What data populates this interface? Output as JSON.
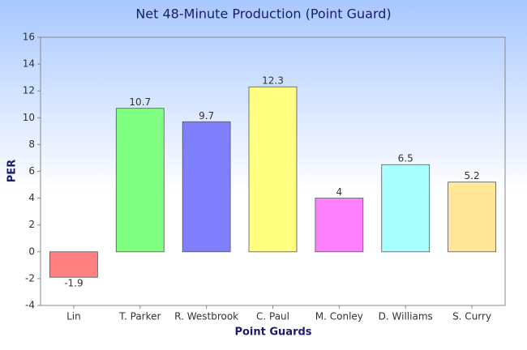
{
  "chart_data": {
    "type": "bar",
    "title": "Net 48-Minute Production (Point Guard)",
    "x_label": "Point Guards",
    "y_label": "PER",
    "categories": [
      "Lin",
      "T. Parker",
      "R. Westbrook",
      "C. Paul",
      "M. Conley",
      "D. Williams",
      "S. Curry"
    ],
    "values": [
      -1.9,
      10.7,
      9.7,
      12.3,
      4,
      6.5,
      5.2
    ],
    "colors": [
      "#ff8080",
      "#80ff80",
      "#8080ff",
      "#ffff80",
      "#ff80ff",
      "#aaffff",
      "#ffe699"
    ],
    "ylim": [
      -4,
      16
    ],
    "yticks": [
      -4,
      -2,
      0,
      2,
      4,
      6,
      8,
      10,
      12,
      14,
      16
    ]
  }
}
